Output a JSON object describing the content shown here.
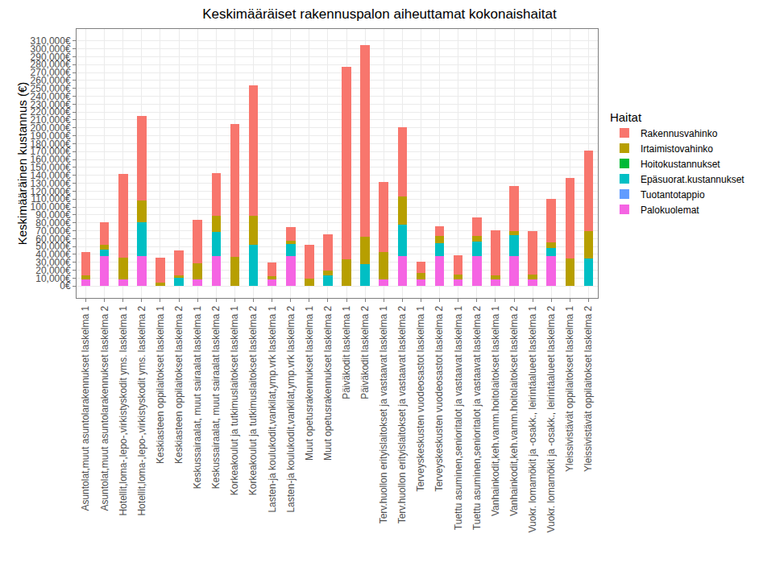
{
  "chart_data": {
    "type": "bar",
    "title": "Keskimääräiset rakennuspalon aiheuttamat kokonaishaitat",
    "y_label": "Keskimääräinen kustannus (€)",
    "legend_title": "Haitat",
    "stacked": true,
    "grid": true,
    "legend": "right",
    "categories": [
      "Asuntolat,muut asuntolarakennukset laskelma 1",
      "Asuntolat,muut asuntolarakennukset laskelma 2",
      "Hotellit,loma-,lepo-,virkistyskodit yms. laskelma 1",
      "Hotellit,loma-,lepo-,virkistyskodit yms. laskelma 2",
      "Keskiasteen oppilaitokset laskelma 1",
      "Keskiasteen oppilaitokset laskelma 2",
      "Keskussairaalat, muut sairaalat laskelma 1",
      "Keskussairaalat, muut sairaalat laskelma 2",
      "Korkeakoulut ja tutkimuslaitokset laskelma 1",
      "Korkeakoulut ja tutkimuslaitokset laskelma 2",
      "Lasten-ja koulukodit,vankilat,ymp.vrk laskelma 1",
      "Lasten-ja koulukodit,vankilat,ymp.vrk laskelma 2",
      "Muut opetusrakennukset laskelma 1",
      "Muut opetusrakennukset laskelma 2",
      "Päiväkodit laskelma 1",
      "Päiväkodit laskelma 2",
      "Terv.huollon erityislaitokset ja vastaavat laskelma 1",
      "Terv.huollon erityislaitokset ja vastaavat laskelma 2",
      "Terveyskeskusten vuodeosastot laskelma 1",
      "Terveyskeskusten vuodeosastot laskelma 2",
      "Tuettu asuminen,senioritalot ja vastaavat laskelma 1",
      "Tuettu asuminen,senioritalot ja vastaavat laskelma 2",
      "Vanhainkodit,keh.vamm.hoitolaitokset laskelma 1",
      "Vanhainkodit,keh.vamm.hoitolaitokset laskelma 2",
      "Vuokr. lomamökit ja -osakk., leirintäalueet laskelma 1",
      "Vuokr. lomamökit ja -osakk., leirintäalueet laskelma 2",
      "Yleissivistävät oppilaitokset laskelma 1",
      "Yleissivistävät oppilaitokset laskelma 2"
    ],
    "series": [
      {
        "name": "Palokuolemat",
        "color": "#F564E3",
        "values": [
          8000,
          38000,
          8000,
          38000,
          0,
          0,
          8000,
          38000,
          0,
          0,
          8000,
          38000,
          0,
          0,
          0,
          0,
          8000,
          38000,
          8000,
          38000,
          8000,
          38000,
          8000,
          38000,
          8000,
          38000,
          0,
          0
        ]
      },
      {
        "name": "Tuotantotappio",
        "color": "#619CFF",
        "values": [
          0,
          0,
          0,
          0,
          0,
          0,
          0,
          0,
          0,
          0,
          0,
          0,
          0,
          0,
          0,
          0,
          0,
          0,
          0,
          0,
          0,
          0,
          0,
          0,
          0,
          0,
          0,
          0
        ]
      },
      {
        "name": "Epäsuorat.kustannukset",
        "color": "#00BFC4",
        "values": [
          0,
          8000,
          0,
          43000,
          0,
          10000,
          0,
          30000,
          0,
          52000,
          0,
          15000,
          0,
          14000,
          0,
          28000,
          0,
          40000,
          0,
          16000,
          0,
          18000,
          0,
          26000,
          0,
          10000,
          0,
          35000
        ]
      },
      {
        "name": "Hoitokustannukset",
        "color": "#00BA38",
        "values": [
          0,
          0,
          0,
          0,
          0,
          0,
          0,
          0,
          0,
          0,
          0,
          0,
          0,
          0,
          0,
          0,
          0,
          0,
          0,
          0,
          0,
          0,
          0,
          0,
          0,
          0,
          0,
          0
        ]
      },
      {
        "name": "Irtaimistovahinko",
        "color": "#B79F00",
        "values": [
          6000,
          6000,
          28000,
          27000,
          4000,
          4000,
          21000,
          21000,
          37000,
          37000,
          4000,
          4000,
          9000,
          6000,
          34000,
          34000,
          35000,
          35000,
          9000,
          9000,
          7000,
          7000,
          5000,
          5000,
          7000,
          7000,
          35000,
          34000
        ]
      },
      {
        "name": "Rakennusvahinko",
        "color": "#F8766D",
        "values": [
          29000,
          29000,
          106000,
          107000,
          32000,
          31000,
          55000,
          54000,
          168000,
          165000,
          18000,
          18000,
          43000,
          45000,
          243000,
          243000,
          89000,
          88000,
          14000,
          13000,
          24000,
          24000,
          58000,
          58000,
          55000,
          55000,
          102000,
          102000
        ]
      }
    ],
    "ylim": [
      -15000,
      325000
    ],
    "yticks": [
      {
        "value": 0,
        "label": "0€"
      },
      {
        "value": 10000,
        "label": "10,000€"
      },
      {
        "value": 20000,
        "label": "20,000€"
      },
      {
        "value": 30000,
        "label": "30,000€"
      },
      {
        "value": 40000,
        "label": "40,000€"
      },
      {
        "value": 50000,
        "label": "50,000€"
      },
      {
        "value": 60000,
        "label": "60,000€"
      },
      {
        "value": 70000,
        "label": "70,000€"
      },
      {
        "value": 80000,
        "label": "80,000€"
      },
      {
        "value": 90000,
        "label": "90,000€"
      },
      {
        "value": 100000,
        "label": "100,000€"
      },
      {
        "value": 110000,
        "label": "110,000€"
      },
      {
        "value": 120000,
        "label": "120,000€"
      },
      {
        "value": 130000,
        "label": "130,000€"
      },
      {
        "value": 140000,
        "label": "140,000€"
      },
      {
        "value": 150000,
        "label": "150,000€"
      },
      {
        "value": 160000,
        "label": "160,000€"
      },
      {
        "value": 170000,
        "label": "170,000€"
      },
      {
        "value": 180000,
        "label": "180,000€"
      },
      {
        "value": 190000,
        "label": "190,000€"
      },
      {
        "value": 200000,
        "label": "200,000€"
      },
      {
        "value": 210000,
        "label": "210,000€"
      },
      {
        "value": 220000,
        "label": "220,000€"
      },
      {
        "value": 230000,
        "label": "230,000€"
      },
      {
        "value": 240000,
        "label": "240,000€"
      },
      {
        "value": 250000,
        "label": "250,000€"
      },
      {
        "value": 260000,
        "label": "260,000€"
      },
      {
        "value": 270000,
        "label": "270,000€"
      },
      {
        "value": 280000,
        "label": "280,000€"
      },
      {
        "value": 290000,
        "label": "290,000€"
      },
      {
        "value": 300000,
        "label": "300,000€"
      },
      {
        "value": 310000,
        "label": "310,000€"
      }
    ]
  }
}
